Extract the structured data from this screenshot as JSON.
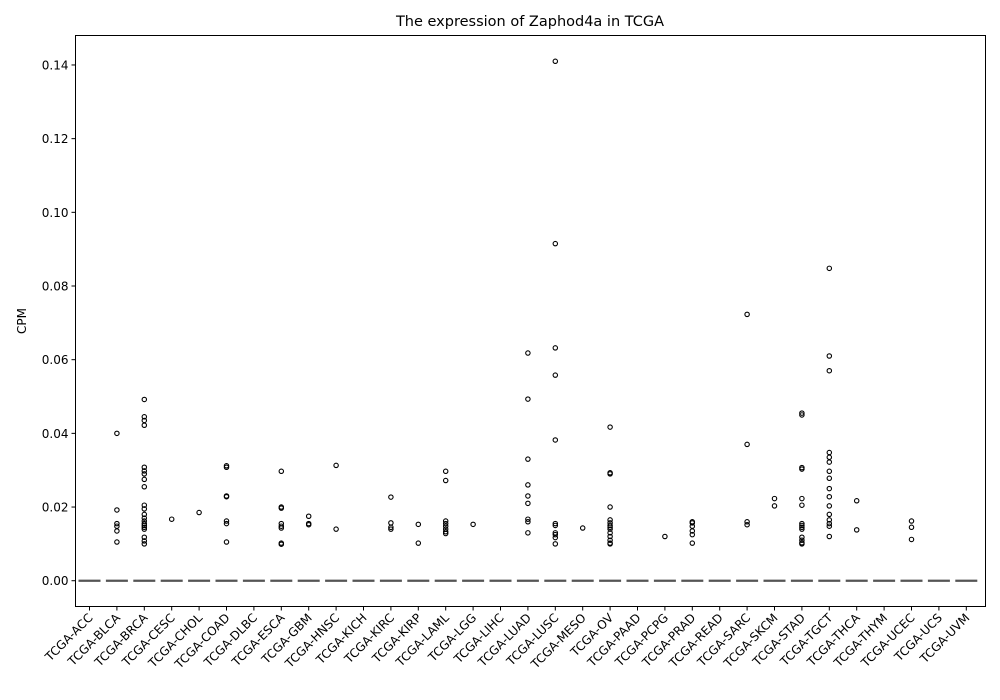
{
  "chart_data": {
    "type": "boxplot",
    "title": "The expression of Zaphod4a in TCGA",
    "xlabel": "",
    "ylabel": "CPM",
    "ylim": [
      -0.007,
      0.148
    ],
    "yticks": [
      0.0,
      0.02,
      0.04,
      0.06,
      0.08,
      0.1,
      0.12,
      0.14
    ],
    "ytick_labels": [
      "0.00",
      "0.02",
      "0.04",
      "0.06",
      "0.08",
      "0.10",
      "0.12",
      "0.14"
    ],
    "grid": false,
    "categories": [
      "TCGA-ACC",
      "TCGA-BLCA",
      "TCGA-BRCA",
      "TCGA-CESC",
      "TCGA-CHOL",
      "TCGA-COAD",
      "TCGA-DLBC",
      "TCGA-ESCA",
      "TCGA-GBM",
      "TCGA-HNSC",
      "TCGA-KICH",
      "TCGA-KIRC",
      "TCGA-KIRP",
      "TCGA-LAML",
      "TCGA-LGG",
      "TCGA-LIHC",
      "TCGA-LUAD",
      "TCGA-LUSC",
      "TCGA-MESO",
      "TCGA-OV",
      "TCGA-PAAD",
      "TCGA-PCPG",
      "TCGA-PRAD",
      "TCGA-READ",
      "TCGA-SARC",
      "TCGA-SKCM",
      "TCGA-STAD",
      "TCGA-TGCT",
      "TCGA-THCA",
      "TCGA-THYM",
      "TCGA-UCEC",
      "TCGA-UCS",
      "TCGA-UVM"
    ],
    "medians": [
      0,
      0,
      0,
      0,
      0,
      0,
      0,
      0,
      0,
      0,
      0,
      0,
      0,
      0,
      0,
      0,
      0,
      0,
      0,
      0,
      0,
      0,
      0,
      0,
      0,
      0,
      0,
      0,
      0,
      0,
      0,
      0,
      0
    ],
    "outliers": [
      [],
      [
        0.04,
        0.0192,
        0.0155,
        0.0148,
        0.0135,
        0.0105
      ],
      [
        0.0492,
        0.0445,
        0.0435,
        0.0422,
        0.0308,
        0.0298,
        0.029,
        0.0275,
        0.0255,
        0.0205,
        0.0195,
        0.018,
        0.017,
        0.0162,
        0.0155,
        0.015,
        0.0145,
        0.014,
        0.0118,
        0.0108,
        0.01
      ],
      [
        0.0167
      ],
      [
        0.0185
      ],
      [
        0.0312,
        0.0308,
        0.023,
        0.0228,
        0.0162,
        0.0155,
        0.0105
      ],
      [],
      [
        0.0297,
        0.02,
        0.0197,
        0.0155,
        0.0148,
        0.0143,
        0.0102,
        0.0099
      ],
      [
        0.0175,
        0.0155,
        0.0152
      ],
      [
        0.0313,
        0.014
      ],
      [],
      [
        0.0227,
        0.0157,
        0.0145,
        0.014
      ],
      [
        0.0153,
        0.0102
      ],
      [
        0.0297,
        0.0272,
        0.0162,
        0.0155,
        0.0148,
        0.014,
        0.0133,
        0.0128
      ],
      [
        0.0153
      ],
      [],
      [
        0.0618,
        0.0493,
        0.033,
        0.026,
        0.023,
        0.021,
        0.0167,
        0.016,
        0.013
      ],
      [
        0.141,
        0.0915,
        0.0632,
        0.0558,
        0.0382,
        0.0155,
        0.015,
        0.013,
        0.0125,
        0.0117,
        0.01
      ],
      [
        0.0143
      ],
      [
        0.0417,
        0.0293,
        0.029,
        0.02,
        0.0165,
        0.0157,
        0.015,
        0.0145,
        0.014,
        0.013,
        0.012,
        0.011,
        0.0102,
        0.01
      ],
      [],
      [
        0.012
      ],
      [
        0.016,
        0.0157,
        0.0148,
        0.0135,
        0.0125,
        0.0102
      ],
      [],
      [
        0.0723,
        0.037,
        0.016,
        0.0152
      ],
      [
        0.0223,
        0.0203
      ],
      [
        0.0455,
        0.045,
        0.0307,
        0.0303,
        0.0223,
        0.0205,
        0.0155,
        0.015,
        0.0145,
        0.014,
        0.0118,
        0.011,
        0.0103,
        0.01
      ],
      [
        0.0848,
        0.061,
        0.057,
        0.0348,
        0.0335,
        0.0322,
        0.0297,
        0.0278,
        0.025,
        0.0228,
        0.0203,
        0.018,
        0.0165,
        0.0155,
        0.0148,
        0.012
      ],
      [
        0.0217,
        0.0138
      ],
      [],
      [
        0.0162,
        0.0145,
        0.0112
      ],
      [],
      []
    ]
  }
}
